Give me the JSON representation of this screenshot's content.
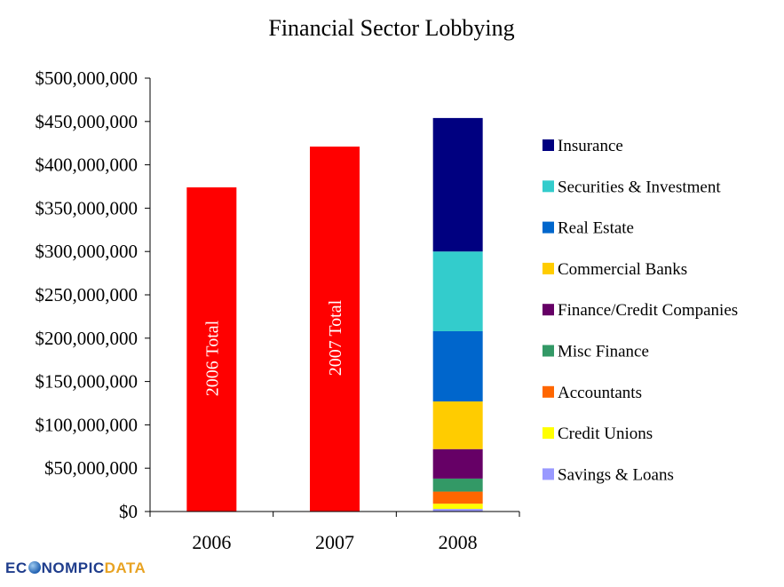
{
  "chart_data": {
    "type": "bar",
    "title": "Financial Sector Lobbying",
    "categories": [
      "2006",
      "2007",
      "2008"
    ],
    "ylim": [
      0,
      500000000
    ],
    "y_ticks": [
      {
        "value": 0,
        "label": "$0"
      },
      {
        "value": 50000000,
        "label": "$50,000,000"
      },
      {
        "value": 100000000,
        "label": "$100,000,000"
      },
      {
        "value": 150000000,
        "label": "$150,000,000"
      },
      {
        "value": 200000000,
        "label": "$200,000,000"
      },
      {
        "value": 250000000,
        "label": "$250,000,000"
      },
      {
        "value": 300000000,
        "label": "$300,000,000"
      },
      {
        "value": 350000000,
        "label": "$350,000,000"
      },
      {
        "value": 400000000,
        "label": "$400,000,000"
      },
      {
        "value": 450000000,
        "label": "$450,000,000"
      },
      {
        "value": 500000000,
        "label": "$500,000,000"
      }
    ],
    "totals": [
      {
        "category": "2006",
        "label": "2006 Total",
        "value": 374000000,
        "color": "#ff0000"
      },
      {
        "category": "2007",
        "label": "2007 Total",
        "value": 421000000,
        "color": "#ff0000"
      }
    ],
    "stacked_category": "2008",
    "series": [
      {
        "name": "Savings & Loans",
        "value": 3000000,
        "color": "#9999ff"
      },
      {
        "name": "Credit Unions",
        "value": 6000000,
        "color": "#ffff00"
      },
      {
        "name": "Accountants",
        "value": 14000000,
        "color": "#ff6600"
      },
      {
        "name": "Misc Finance",
        "value": 15000000,
        "color": "#339966"
      },
      {
        "name": "Finance/Credit Companies",
        "value": 34000000,
        "color": "#660066"
      },
      {
        "name": "Commercial Banks",
        "value": 55000000,
        "color": "#ffcc00"
      },
      {
        "name": "Real Estate",
        "value": 81000000,
        "color": "#0066cc"
      },
      {
        "name": "Securities & Investment",
        "value": 92000000,
        "color": "#33cccc"
      },
      {
        "name": "Insurance",
        "value": 154000000,
        "color": "#000080"
      }
    ],
    "legend": [
      "Insurance",
      "Securities & Investment",
      "Real Estate",
      "Commercial Banks",
      "Finance/Credit Companies",
      "Misc Finance",
      "Accountants",
      "Credit Unions",
      "Savings & Loans"
    ]
  },
  "logo": {
    "part1": "EC",
    "part2": "NOMPIC",
    "part3": "DATA"
  }
}
